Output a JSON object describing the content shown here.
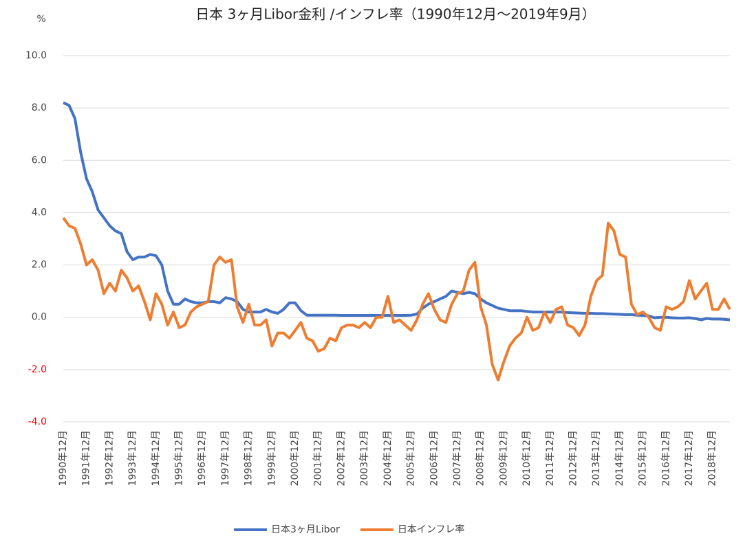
{
  "chart_data": {
    "type": "line",
    "title": "日本   3ヶ月Libor金利 /インフレ率（1990年12月～2019年9月）",
    "y_label": "%",
    "ylim": [
      -4,
      10
    ],
    "yticks": [
      {
        "value": -4,
        "label": "-4.0"
      },
      {
        "value": -2,
        "label": "-2.0"
      },
      {
        "value": 0,
        "label": "0.0"
      },
      {
        "value": 2,
        "label": "2.0"
      },
      {
        "value": 4,
        "label": "4.0"
      },
      {
        "value": 6,
        "label": "6.0"
      },
      {
        "value": 8,
        "label": "8.0"
      },
      {
        "value": 10,
        "label": "10.0"
      }
    ],
    "negative_tick_color": "#ff0000",
    "grid": true,
    "legend": "bottom",
    "categories": [
      "1990年12月",
      null,
      null,
      null,
      "1991年12月",
      null,
      null,
      null,
      "1992年12月",
      null,
      null,
      null,
      "1993年12月",
      null,
      null,
      null,
      "1994年12月",
      null,
      null,
      null,
      "1995年12月",
      null,
      null,
      null,
      "1996年12月",
      null,
      null,
      null,
      "1997年12月",
      null,
      null,
      null,
      "1998年12月",
      null,
      null,
      null,
      "1999年12月",
      null,
      null,
      null,
      "2000年12月",
      null,
      null,
      null,
      "2001年12月",
      null,
      null,
      null,
      "2002年12月",
      null,
      null,
      null,
      "2003年12月",
      null,
      null,
      null,
      "2004年12月",
      null,
      null,
      null,
      "2005年12月",
      null,
      null,
      null,
      "2006年12月",
      null,
      null,
      null,
      "2007年12月",
      null,
      null,
      null,
      "2008年12月",
      null,
      null,
      null,
      "2009年12月",
      null,
      null,
      null,
      "2010年12月",
      null,
      null,
      null,
      "2011年12月",
      null,
      null,
      null,
      "2012年12月",
      null,
      null,
      null,
      "2013年12月",
      null,
      null,
      null,
      "2014年12月",
      null,
      null,
      null,
      "2015年12月",
      null,
      null,
      null,
      "2016年12月",
      null,
      null,
      null,
      "2017年12月",
      null,
      null,
      null,
      "2018年12月",
      null,
      null,
      null
    ],
    "series": [
      {
        "name": "日本3ヶ月Libor",
        "color": "#4472c4",
        "values": [
          8.2,
          8.1,
          7.6,
          6.3,
          5.3,
          4.8,
          4.1,
          3.8,
          3.5,
          3.3,
          3.2,
          2.5,
          2.2,
          2.3,
          2.3,
          2.4,
          2.35,
          2.0,
          1.0,
          0.5,
          0.5,
          0.7,
          0.6,
          0.55,
          0.55,
          0.6,
          0.6,
          0.55,
          0.75,
          0.7,
          0.6,
          0.3,
          0.2,
          0.2,
          0.2,
          0.3,
          0.2,
          0.15,
          0.3,
          0.55,
          0.55,
          0.25,
          0.08,
          0.08,
          0.08,
          0.08,
          0.08,
          0.08,
          0.07,
          0.07,
          0.07,
          0.07,
          0.07,
          0.07,
          0.07,
          0.07,
          0.07,
          0.07,
          0.07,
          0.07,
          0.08,
          0.12,
          0.35,
          0.5,
          0.6,
          0.7,
          0.8,
          1.0,
          0.95,
          0.9,
          0.95,
          0.9,
          0.7,
          0.55,
          0.45,
          0.35,
          0.3,
          0.25,
          0.25,
          0.25,
          0.22,
          0.2,
          0.2,
          0.2,
          0.2,
          0.2,
          0.2,
          0.18,
          0.17,
          0.16,
          0.15,
          0.15,
          0.14,
          0.14,
          0.13,
          0.12,
          0.11,
          0.1,
          0.1,
          0.08,
          0.07,
          0.05,
          -0.02,
          0.0,
          0.0,
          -0.02,
          -0.03,
          -0.03,
          -0.02,
          -0.05,
          -0.1,
          -0.05,
          -0.07,
          -0.07,
          -0.08,
          -0.1
        ]
      },
      {
        "name": "日本インフレ率",
        "color": "#ed7d31",
        "values": [
          3.8,
          3.5,
          3.4,
          2.8,
          2.0,
          2.2,
          1.8,
          0.9,
          1.3,
          1.0,
          1.8,
          1.5,
          1.0,
          1.2,
          0.6,
          -0.1,
          0.9,
          0.5,
          -0.3,
          0.2,
          -0.4,
          -0.3,
          0.2,
          0.4,
          0.5,
          0.6,
          2.0,
          2.3,
          2.1,
          2.2,
          0.4,
          -0.2,
          0.5,
          -0.3,
          -0.3,
          -0.1,
          -1.1,
          -0.6,
          -0.6,
          -0.8,
          -0.5,
          -0.2,
          -0.8,
          -0.9,
          -1.3,
          -1.2,
          -0.8,
          -0.9,
          -0.4,
          -0.3,
          -0.3,
          -0.4,
          -0.2,
          -0.4,
          0.0,
          0.0,
          0.8,
          -0.2,
          -0.1,
          -0.3,
          -0.5,
          -0.1,
          0.5,
          0.9,
          0.3,
          -0.1,
          -0.2,
          0.5,
          0.9,
          1.0,
          1.8,
          2.1,
          0.4,
          -0.3,
          -1.8,
          -2.4,
          -1.7,
          -1.1,
          -0.8,
          -0.6,
          0.0,
          -0.5,
          -0.4,
          0.2,
          -0.2,
          0.3,
          0.4,
          -0.3,
          -0.4,
          -0.7,
          -0.3,
          0.8,
          1.4,
          1.6,
          3.6,
          3.3,
          2.4,
          2.3,
          0.5,
          0.1,
          0.2,
          0.0,
          -0.4,
          -0.5,
          0.4,
          0.3,
          0.4,
          0.6,
          1.4,
          0.7,
          1.0,
          1.3,
          0.3,
          0.3,
          0.7,
          0.3
        ]
      }
    ]
  }
}
